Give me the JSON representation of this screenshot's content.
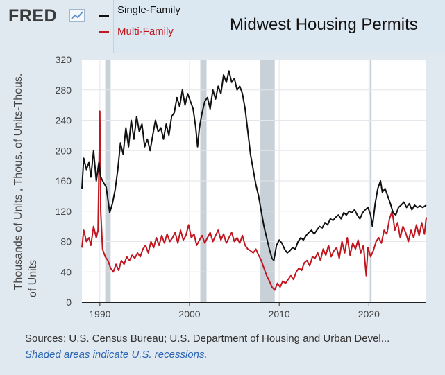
{
  "brand": {
    "logo_text": "FRED",
    "logo_mark": "fred-trend-icon"
  },
  "colors": {
    "single_family": "#111111",
    "multi_family": "#c0161f",
    "recession": "#c8d0d8",
    "plot_bg": "#ffffff"
  },
  "legend": [
    {
      "label": "Single-Family",
      "color": "#111111"
    },
    {
      "label": "Multi-Family",
      "color": "#c0161f"
    }
  ],
  "footer": {
    "sources": "Sources: U.S. Census Bureau; U.S. Department of Housing and Urban Devel...",
    "recession_note": "Shaded areas indicate U.S. recessions."
  },
  "chart_data": {
    "type": "line",
    "title": "Midwest Housing Permits",
    "ylabel_line1": "Thousands of Units , Thous. of Units-Thous.",
    "ylabel_line2": "of Units",
    "xlim": [
      1988.0,
      2026.4
    ],
    "ylim": [
      0,
      320
    ],
    "yticks": [
      0,
      40,
      80,
      120,
      160,
      200,
      240,
      280,
      320
    ],
    "xticks": [
      1990,
      2000,
      2010,
      2020
    ],
    "grid": true,
    "legend_position": "top-left",
    "recessions": [
      [
        1990.6,
        1991.2
      ],
      [
        2001.2,
        2001.9
      ],
      [
        2007.9,
        2009.5
      ],
      [
        2020.1,
        2020.3
      ]
    ],
    "series": [
      {
        "name": "Single-Family",
        "color": "#111111",
        "points": [
          [
            1988.0,
            150
          ],
          [
            1988.2,
            190
          ],
          [
            1988.5,
            175
          ],
          [
            1988.8,
            185
          ],
          [
            1989.0,
            165
          ],
          [
            1989.3,
            200
          ],
          [
            1989.6,
            160
          ],
          [
            1989.9,
            185
          ],
          [
            1990.1,
            165
          ],
          [
            1990.4,
            158
          ],
          [
            1990.7,
            152
          ],
          [
            1990.9,
            135
          ],
          [
            1991.1,
            118
          ],
          [
            1991.4,
            130
          ],
          [
            1991.7,
            148
          ],
          [
            1992.0,
            175
          ],
          [
            1992.3,
            210
          ],
          [
            1992.6,
            195
          ],
          [
            1992.9,
            230
          ],
          [
            1993.2,
            205
          ],
          [
            1993.5,
            240
          ],
          [
            1993.8,
            215
          ],
          [
            1994.1,
            245
          ],
          [
            1994.4,
            225
          ],
          [
            1994.7,
            235
          ],
          [
            1995.0,
            205
          ],
          [
            1995.3,
            215
          ],
          [
            1995.6,
            200
          ],
          [
            1995.9,
            220
          ],
          [
            1996.2,
            240
          ],
          [
            1996.5,
            225
          ],
          [
            1996.8,
            230
          ],
          [
            1997.1,
            215
          ],
          [
            1997.4,
            235
          ],
          [
            1997.7,
            220
          ],
          [
            1998.0,
            245
          ],
          [
            1998.3,
            250
          ],
          [
            1998.6,
            270
          ],
          [
            1998.9,
            258
          ],
          [
            1999.2,
            280
          ],
          [
            1999.5,
            260
          ],
          [
            1999.8,
            275
          ],
          [
            2000.1,
            265
          ],
          [
            2000.4,
            255
          ],
          [
            2000.7,
            230
          ],
          [
            2000.9,
            205
          ],
          [
            2001.1,
            230
          ],
          [
            2001.4,
            250
          ],
          [
            2001.7,
            265
          ],
          [
            2002.0,
            270
          ],
          [
            2002.3,
            255
          ],
          [
            2002.6,
            280
          ],
          [
            2002.9,
            268
          ],
          [
            2003.2,
            285
          ],
          [
            2003.5,
            275
          ],
          [
            2003.8,
            300
          ],
          [
            2004.1,
            290
          ],
          [
            2004.4,
            305
          ],
          [
            2004.7,
            290
          ],
          [
            2005.0,
            295
          ],
          [
            2005.3,
            280
          ],
          [
            2005.6,
            285
          ],
          [
            2005.9,
            275
          ],
          [
            2006.2,
            255
          ],
          [
            2006.5,
            225
          ],
          [
            2006.8,
            195
          ],
          [
            2007.1,
            175
          ],
          [
            2007.4,
            155
          ],
          [
            2007.7,
            140
          ],
          [
            2008.0,
            120
          ],
          [
            2008.3,
            100
          ],
          [
            2008.6,
            85
          ],
          [
            2008.9,
            70
          ],
          [
            2009.2,
            58
          ],
          [
            2009.4,
            55
          ],
          [
            2009.7,
            75
          ],
          [
            2010.0,
            82
          ],
          [
            2010.3,
            78
          ],
          [
            2010.6,
            70
          ],
          [
            2010.9,
            65
          ],
          [
            2011.2,
            68
          ],
          [
            2011.5,
            72
          ],
          [
            2011.8,
            70
          ],
          [
            2012.1,
            80
          ],
          [
            2012.4,
            85
          ],
          [
            2012.7,
            82
          ],
          [
            2013.0,
            88
          ],
          [
            2013.3,
            92
          ],
          [
            2013.6,
            95
          ],
          [
            2013.9,
            90
          ],
          [
            2014.2,
            95
          ],
          [
            2014.5,
            100
          ],
          [
            2014.8,
            98
          ],
          [
            2015.1,
            105
          ],
          [
            2015.4,
            102
          ],
          [
            2015.7,
            110
          ],
          [
            2016.0,
            108
          ],
          [
            2016.3,
            112
          ],
          [
            2016.6,
            115
          ],
          [
            2016.9,
            110
          ],
          [
            2017.2,
            118
          ],
          [
            2017.5,
            115
          ],
          [
            2017.8,
            120
          ],
          [
            2018.1,
            118
          ],
          [
            2018.4,
            122
          ],
          [
            2018.7,
            115
          ],
          [
            2019.0,
            110
          ],
          [
            2019.3,
            118
          ],
          [
            2019.6,
            122
          ],
          [
            2019.9,
            125
          ],
          [
            2020.2,
            115
          ],
          [
            2020.4,
            100
          ],
          [
            2020.7,
            130
          ],
          [
            2021.0,
            150
          ],
          [
            2021.3,
            160
          ],
          [
            2021.5,
            145
          ],
          [
            2021.8,
            150
          ],
          [
            2022.1,
            140
          ],
          [
            2022.4,
            130
          ],
          [
            2022.7,
            118
          ],
          [
            2023.0,
            115
          ],
          [
            2023.3,
            125
          ],
          [
            2023.6,
            128
          ],
          [
            2023.9,
            132
          ],
          [
            2024.2,
            125
          ],
          [
            2024.5,
            130
          ],
          [
            2024.8,
            122
          ],
          [
            2025.1,
            128
          ],
          [
            2025.4,
            125
          ],
          [
            2025.7,
            127
          ],
          [
            2026.0,
            125
          ],
          [
            2026.4,
            128
          ]
        ]
      },
      {
        "name": "Multi-Family",
        "color": "#c0161f",
        "points": [
          [
            1988.0,
            72
          ],
          [
            1988.2,
            95
          ],
          [
            1988.5,
            80
          ],
          [
            1988.8,
            85
          ],
          [
            1989.0,
            75
          ],
          [
            1989.3,
            100
          ],
          [
            1989.6,
            85
          ],
          [
            1989.8,
            95
          ],
          [
            1990.0,
            252
          ],
          [
            1990.1,
            120
          ],
          [
            1990.3,
            70
          ],
          [
            1990.6,
            60
          ],
          [
            1990.9,
            55
          ],
          [
            1991.2,
            45
          ],
          [
            1991.5,
            40
          ],
          [
            1991.8,
            50
          ],
          [
            1992.1,
            42
          ],
          [
            1992.4,
            55
          ],
          [
            1992.7,
            50
          ],
          [
            1993.0,
            60
          ],
          [
            1993.3,
            55
          ],
          [
            1993.6,
            62
          ],
          [
            1993.9,
            58
          ],
          [
            1994.2,
            65
          ],
          [
            1994.5,
            60
          ],
          [
            1994.8,
            70
          ],
          [
            1995.1,
            75
          ],
          [
            1995.4,
            65
          ],
          [
            1995.7,
            80
          ],
          [
            1996.0,
            72
          ],
          [
            1996.3,
            85
          ],
          [
            1996.6,
            75
          ],
          [
            1996.9,
            88
          ],
          [
            1997.2,
            78
          ],
          [
            1997.5,
            90
          ],
          [
            1997.8,
            80
          ],
          [
            1998.1,
            85
          ],
          [
            1998.4,
            92
          ],
          [
            1998.7,
            78
          ],
          [
            1999.0,
            95
          ],
          [
            1999.3,
            82
          ],
          [
            1999.6,
            88
          ],
          [
            1999.9,
            102
          ],
          [
            2000.2,
            85
          ],
          [
            2000.5,
            90
          ],
          [
            2000.8,
            75
          ],
          [
            2001.1,
            82
          ],
          [
            2001.4,
            88
          ],
          [
            2001.7,
            78
          ],
          [
            2002.0,
            85
          ],
          [
            2002.3,
            92
          ],
          [
            2002.6,
            80
          ],
          [
            2002.9,
            88
          ],
          [
            2003.2,
            95
          ],
          [
            2003.5,
            82
          ],
          [
            2003.8,
            90
          ],
          [
            2004.1,
            78
          ],
          [
            2004.4,
            85
          ],
          [
            2004.7,
            92
          ],
          [
            2005.0,
            80
          ],
          [
            2005.3,
            85
          ],
          [
            2005.6,
            78
          ],
          [
            2005.9,
            88
          ],
          [
            2006.2,
            75
          ],
          [
            2006.5,
            70
          ],
          [
            2006.8,
            68
          ],
          [
            2007.1,
            65
          ],
          [
            2007.4,
            70
          ],
          [
            2007.7,
            62
          ],
          [
            2008.0,
            55
          ],
          [
            2008.3,
            45
          ],
          [
            2008.6,
            35
          ],
          [
            2008.9,
            28
          ],
          [
            2009.2,
            20
          ],
          [
            2009.5,
            16
          ],
          [
            2009.8,
            25
          ],
          [
            2010.1,
            20
          ],
          [
            2010.4,
            28
          ],
          [
            2010.7,
            25
          ],
          [
            2011.0,
            30
          ],
          [
            2011.3,
            35
          ],
          [
            2011.6,
            30
          ],
          [
            2011.9,
            40
          ],
          [
            2012.2,
            45
          ],
          [
            2012.5,
            42
          ],
          [
            2012.8,
            52
          ],
          [
            2013.1,
            55
          ],
          [
            2013.4,
            48
          ],
          [
            2013.7,
            60
          ],
          [
            2014.0,
            58
          ],
          [
            2014.3,
            65
          ],
          [
            2014.6,
            55
          ],
          [
            2014.9,
            70
          ],
          [
            2015.2,
            62
          ],
          [
            2015.5,
            75
          ],
          [
            2015.8,
            60
          ],
          [
            2016.1,
            68
          ],
          [
            2016.4,
            72
          ],
          [
            2016.7,
            58
          ],
          [
            2017.0,
            80
          ],
          [
            2017.3,
            65
          ],
          [
            2017.6,
            85
          ],
          [
            2017.9,
            62
          ],
          [
            2018.2,
            78
          ],
          [
            2018.5,
            70
          ],
          [
            2018.8,
            82
          ],
          [
            2019.1,
            65
          ],
          [
            2019.4,
            75
          ],
          [
            2019.7,
            35
          ],
          [
            2019.9,
            72
          ],
          [
            2020.2,
            60
          ],
          [
            2020.5,
            68
          ],
          [
            2020.8,
            80
          ],
          [
            2021.1,
            85
          ],
          [
            2021.4,
            78
          ],
          [
            2021.7,
            95
          ],
          [
            2022.0,
            90
          ],
          [
            2022.3,
            110
          ],
          [
            2022.6,
            120
          ],
          [
            2022.9,
            95
          ],
          [
            2023.2,
            105
          ],
          [
            2023.5,
            85
          ],
          [
            2023.8,
            100
          ],
          [
            2024.1,
            92
          ],
          [
            2024.4,
            80
          ],
          [
            2024.7,
            95
          ],
          [
            2025.0,
            85
          ],
          [
            2025.3,
            102
          ],
          [
            2025.6,
            88
          ],
          [
            2025.9,
            105
          ],
          [
            2026.2,
            90
          ],
          [
            2026.4,
            112
          ]
        ]
      }
    ]
  }
}
